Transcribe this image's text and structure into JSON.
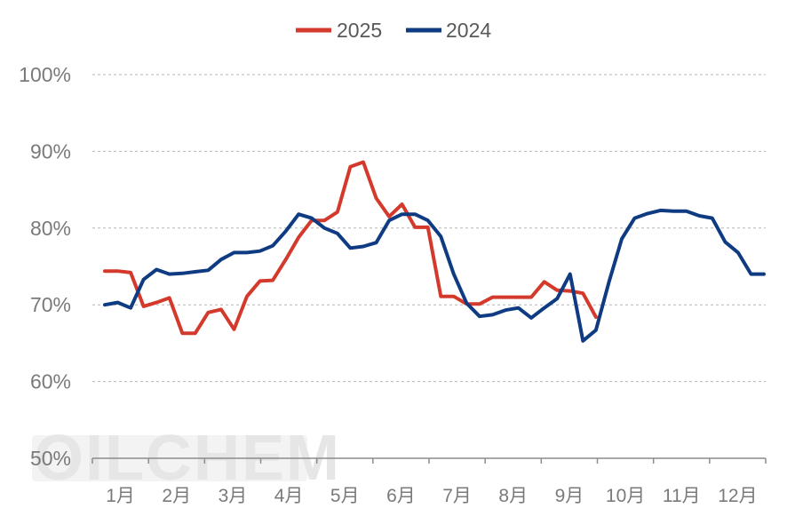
{
  "watermark": "OILCHEM",
  "chart_data": {
    "type": "line",
    "title": "",
    "xlabel": "",
    "ylabel": "",
    "ylim": [
      50,
      100
    ],
    "yticks": [
      50,
      60,
      70,
      80,
      90,
      100
    ],
    "ytick_labels": [
      "50%",
      "60%",
      "70%",
      "80%",
      "90%",
      "100%"
    ],
    "xlim": [
      1,
      52
    ],
    "x_categories": [
      "1月",
      "2月",
      "3月",
      "4月",
      "5月",
      "6月",
      "7月",
      "8月",
      "9月",
      "10月",
      "11月",
      "12月"
    ],
    "grid": "horizontal dashed",
    "legend_position": "top-center",
    "series": [
      {
        "name": "2025",
        "color": "#d33a2c",
        "x": [
          1,
          2,
          3,
          4,
          5,
          6,
          7,
          8,
          9,
          10,
          11,
          12,
          13,
          14,
          15,
          16,
          17,
          18,
          19,
          20,
          21,
          22,
          23,
          24,
          25,
          26,
          27,
          28,
          29,
          30,
          31,
          32,
          33,
          34,
          35,
          36,
          37,
          38,
          39,
          40
        ],
        "y": [
          74.4,
          74.4,
          74.2,
          69.8,
          70.3,
          70.9,
          66.3,
          66.3,
          69.0,
          69.4,
          66.8,
          71.1,
          73.1,
          73.2,
          75.9,
          78.8,
          81.0,
          81.0,
          82.1,
          88.0,
          88.6,
          83.9,
          81.5,
          83.1,
          80.1,
          80.1,
          71.1,
          71.1,
          70.1,
          70.1,
          71.0,
          71.0,
          71.0,
          71.0,
          73.0,
          71.9,
          71.8,
          71.5,
          68.4,
          null
        ]
      },
      {
        "name": "2024",
        "color": "#0f3b82",
        "x": [
          1,
          2,
          3,
          4,
          5,
          6,
          7,
          8,
          9,
          10,
          11,
          12,
          13,
          14,
          15,
          16,
          17,
          18,
          19,
          20,
          21,
          22,
          23,
          24,
          25,
          26,
          27,
          28,
          29,
          30,
          31,
          32,
          33,
          34,
          35,
          36,
          37,
          38,
          39,
          40,
          41,
          42,
          43,
          44,
          45,
          46,
          47,
          48,
          49,
          50,
          51,
          52
        ],
        "y": [
          70.0,
          70.3,
          69.6,
          73.3,
          74.6,
          74.0,
          74.1,
          74.3,
          74.5,
          75.9,
          76.8,
          76.8,
          77.0,
          77.7,
          79.6,
          81.8,
          81.3,
          80.0,
          79.3,
          77.4,
          77.6,
          78.1,
          81.0,
          81.8,
          81.8,
          81.0,
          78.9,
          74.0,
          70.2,
          68.5,
          68.7,
          69.3,
          69.6,
          68.3,
          69.6,
          70.8,
          74.0,
          65.3,
          66.7,
          72.9,
          78.6,
          81.3,
          81.9,
          82.3,
          82.2,
          82.2,
          81.6,
          81.3,
          78.2,
          76.8,
          74.0,
          74.0
        ]
      }
    ]
  }
}
